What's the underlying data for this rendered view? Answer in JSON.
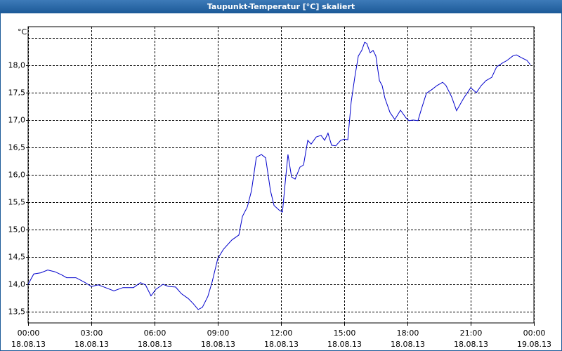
{
  "chart_data": {
    "type": "line",
    "title": "Taupunkt-Temperatur [°C] skaliert",
    "y_unit": "°C",
    "x": [
      0,
      0.27,
      0.6,
      0.93,
      1.27,
      1.6,
      1.83,
      2.27,
      2.67,
      3.0,
      3.33,
      3.67,
      4.07,
      4.5,
      5.0,
      5.33,
      5.57,
      5.83,
      6.07,
      6.4,
      6.67,
      7.0,
      7.27,
      7.6,
      7.83,
      8.07,
      8.27,
      8.53,
      8.73,
      9.0,
      9.27,
      9.67,
      10.0,
      10.17,
      10.4,
      10.6,
      10.83,
      11.07,
      11.27,
      11.5,
      11.67,
      11.93,
      12.07,
      12.2,
      12.33,
      12.5,
      12.67,
      12.9,
      13.07,
      13.27,
      13.43,
      13.67,
      13.9,
      14.07,
      14.23,
      14.4,
      14.6,
      14.83,
      15.0,
      15.17,
      15.33,
      15.5,
      15.67,
      15.83,
      15.97,
      16.07,
      16.23,
      16.37,
      16.5,
      16.67,
      16.8,
      16.93,
      17.17,
      17.4,
      17.67,
      17.93,
      18.07,
      18.27,
      18.5,
      18.67,
      18.9,
      19.17,
      19.4,
      19.67,
      19.83,
      20.1,
      20.33,
      20.67,
      21.0,
      21.27,
      21.5,
      21.73,
      22.0,
      22.23,
      22.5,
      22.73,
      23.0,
      23.17,
      23.4,
      23.67,
      23.83
    ],
    "series": [
      {
        "name": "Taupunkt-Temperatur",
        "color": "#0000cc",
        "values": [
          14.0,
          14.19,
          14.21,
          14.26,
          14.23,
          14.17,
          14.12,
          14.12,
          14.04,
          13.96,
          13.99,
          13.94,
          13.88,
          13.94,
          13.94,
          14.03,
          13.99,
          13.79,
          13.91,
          14.0,
          13.96,
          13.95,
          13.83,
          13.74,
          13.65,
          13.54,
          13.58,
          13.78,
          14.04,
          14.47,
          14.64,
          14.81,
          14.9,
          15.24,
          15.41,
          15.71,
          16.32,
          16.37,
          16.31,
          15.71,
          15.44,
          15.35,
          15.32,
          15.86,
          16.37,
          15.96,
          15.92,
          16.14,
          16.18,
          16.63,
          16.56,
          16.69,
          16.72,
          16.63,
          16.76,
          16.54,
          16.53,
          16.63,
          16.65,
          16.64,
          17.33,
          17.78,
          18.17,
          18.27,
          18.42,
          18.4,
          18.23,
          18.27,
          18.17,
          17.72,
          17.63,
          17.4,
          17.14,
          17.01,
          17.18,
          17.04,
          16.99,
          17.0,
          16.99,
          17.21,
          17.49,
          17.56,
          17.63,
          17.69,
          17.63,
          17.42,
          17.17,
          17.4,
          17.59,
          17.5,
          17.63,
          17.72,
          17.78,
          17.97,
          18.04,
          18.09,
          18.17,
          18.19,
          18.14,
          18.09,
          18.01
        ]
      }
    ],
    "xlim": [
      0,
      24
    ],
    "xticks": [
      {
        "value": 0,
        "label": "00:00",
        "date": "18.08.13"
      },
      {
        "value": 3,
        "label": "03:00",
        "date": "18.08.13"
      },
      {
        "value": 6,
        "label": "06:00",
        "date": "18.08.13"
      },
      {
        "value": 9,
        "label": "09:00",
        "date": "18.08.13"
      },
      {
        "value": 12,
        "label": "12:00",
        "date": "18.08.13"
      },
      {
        "value": 15,
        "label": "15:00",
        "date": "18.08.13"
      },
      {
        "value": 18,
        "label": "18:00",
        "date": "18.08.13"
      },
      {
        "value": 21,
        "label": "21:00",
        "date": "18.08.13"
      },
      {
        "value": 24,
        "label": "00:00",
        "date": "19.08.13"
      }
    ],
    "ylim": [
      13.295,
      18.705
    ],
    "yticks": [
      {
        "value": 13.5,
        "label": "13,5"
      },
      {
        "value": 14,
        "label": "14,0"
      },
      {
        "value": 14.5,
        "label": "14,5"
      },
      {
        "value": 15,
        "label": "15,0"
      },
      {
        "value": 15.5,
        "label": "15,5"
      },
      {
        "value": 16,
        "label": "16,0"
      },
      {
        "value": 16.5,
        "label": "16,5"
      },
      {
        "value": 17,
        "label": "17,0"
      },
      {
        "value": 17.5,
        "label": "17,5"
      },
      {
        "value": 18,
        "label": "18,0"
      }
    ],
    "ygrid": [
      13.5,
      14,
      14.5,
      15,
      15.5,
      16,
      16.5,
      17,
      17.5,
      18,
      18.5
    ],
    "grid": true
  }
}
